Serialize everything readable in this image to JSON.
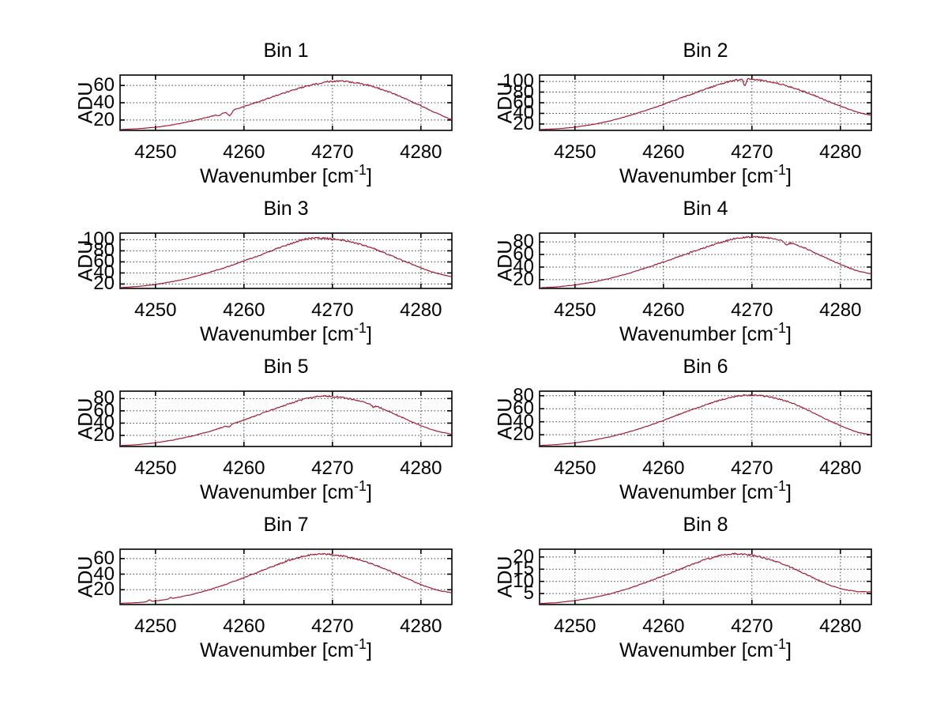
{
  "figure": {
    "background": "#ffffff",
    "line_color": "#A2142F",
    "grid_color": "#3c3c3c",
    "axis_color": "#000000",
    "text_color": "#000000"
  },
  "chart_data": [
    {
      "type": "line",
      "title": "Bin 1",
      "ylabel": "ADU",
      "xlabel_parts": [
        "Wavenumber [cm",
        "-1",
        "]"
      ],
      "xlim": [
        4246,
        4283.5
      ],
      "xticks": [
        4250,
        4260,
        4270,
        4280
      ],
      "ylim": [
        8,
        72
      ],
      "yticks": [
        20,
        40,
        60
      ],
      "grid": true,
      "noise": 0.9,
      "anchors": [
        [
          4246,
          9
        ],
        [
          4248,
          10
        ],
        [
          4250,
          11.5
        ],
        [
          4252,
          14.5
        ],
        [
          4254,
          18.5
        ],
        [
          4256,
          23.5
        ],
        [
          4258,
          29
        ],
        [
          4260,
          35.5
        ],
        [
          4262,
          42.5
        ],
        [
          4264,
          49.5
        ],
        [
          4266,
          56
        ],
        [
          4268,
          61.5
        ],
        [
          4269,
          63.5
        ],
        [
          4270,
          65
        ],
        [
          4271,
          65
        ],
        [
          4272,
          64
        ],
        [
          4273,
          62.5
        ],
        [
          4274,
          60.5
        ],
        [
          4275,
          57.5
        ],
        [
          4276,
          54
        ],
        [
          4277,
          50
        ],
        [
          4278,
          45.5
        ],
        [
          4279,
          41
        ],
        [
          4280,
          36.5
        ],
        [
          4281,
          31.5
        ],
        [
          4282,
          27
        ],
        [
          4283.5,
          20
        ]
      ],
      "events": [
        {
          "x": 4257.2,
          "dy": -2,
          "w": 0.35
        },
        {
          "x": 4258.4,
          "dy": -5.5,
          "w": 0.45
        }
      ]
    },
    {
      "type": "line",
      "title": "Bin 2",
      "ylabel": "ADU",
      "xlabel_parts": [
        "Wavenumber [cm",
        "-1",
        "]"
      ],
      "xlim": [
        4246,
        4283.5
      ],
      "xticks": [
        4250,
        4260,
        4270,
        4280
      ],
      "ylim": [
        8,
        112
      ],
      "yticks": [
        20,
        40,
        60,
        80,
        100
      ],
      "grid": true,
      "noise": 1.4,
      "anchors": [
        [
          4246,
          9.5
        ],
        [
          4248,
          11
        ],
        [
          4250,
          14
        ],
        [
          4252,
          19
        ],
        [
          4254,
          26
        ],
        [
          4256,
          35
        ],
        [
          4258,
          45.5
        ],
        [
          4260,
          57
        ],
        [
          4262,
          69
        ],
        [
          4264,
          81
        ],
        [
          4265,
          87
        ],
        [
          4266,
          93
        ],
        [
          4267,
          98
        ],
        [
          4268,
          102
        ],
        [
          4269,
          104.5
        ],
        [
          4270,
          104
        ],
        [
          4271,
          102
        ],
        [
          4272,
          99.5
        ],
        [
          4273,
          96
        ],
        [
          4274,
          91.5
        ],
        [
          4275,
          86.5
        ],
        [
          4276,
          80.5
        ],
        [
          4277,
          74
        ],
        [
          4278,
          67
        ],
        [
          4279,
          60
        ],
        [
          4280,
          53.5
        ],
        [
          4281,
          47.5
        ],
        [
          4282,
          42
        ],
        [
          4283.5,
          36
        ]
      ],
      "events": [
        {
          "x": 4269.2,
          "dy": -15,
          "w": 0.3
        }
      ]
    },
    {
      "type": "line",
      "title": "Bin 3",
      "ylabel": "ADU",
      "xlabel_parts": [
        "Wavenumber [cm",
        "-1",
        "]"
      ],
      "xlim": [
        4246,
        4283.5
      ],
      "xticks": [
        4250,
        4260,
        4270,
        4280
      ],
      "ylim": [
        12,
        112
      ],
      "yticks": [
        20,
        40,
        60,
        80,
        100
      ],
      "grid": true,
      "noise": 1.5,
      "anchors": [
        [
          4246,
          13.5
        ],
        [
          4248,
          15.5
        ],
        [
          4250,
          19
        ],
        [
          4252,
          24.5
        ],
        [
          4254,
          31.5
        ],
        [
          4256,
          40.5
        ],
        [
          4258,
          50.5
        ],
        [
          4260,
          61.5
        ],
        [
          4262,
          73.5
        ],
        [
          4264,
          85.5
        ],
        [
          4265,
          91
        ],
        [
          4266,
          97
        ],
        [
          4267,
          101.5
        ],
        [
          4268,
          103.5
        ],
        [
          4269,
          103
        ],
        [
          4270,
          101.5
        ],
        [
          4271,
          99.5
        ],
        [
          4272,
          96.5
        ],
        [
          4273,
          92.5
        ],
        [
          4274,
          87.5
        ],
        [
          4275,
          82
        ],
        [
          4276,
          75.5
        ],
        [
          4277,
          69
        ],
        [
          4278,
          62
        ],
        [
          4279,
          55.5
        ],
        [
          4280,
          49
        ],
        [
          4281,
          43.5
        ],
        [
          4282,
          38.5
        ],
        [
          4283.5,
          33
        ]
      ],
      "events": []
    },
    {
      "type": "line",
      "title": "Bin 4",
      "ylabel": "ADU",
      "xlabel_parts": [
        "Wavenumber [cm",
        "-1",
        "]"
      ],
      "xlim": [
        4246,
        4283.5
      ],
      "xticks": [
        4250,
        4260,
        4270,
        4280
      ],
      "ylim": [
        6,
        94
      ],
      "yticks": [
        20,
        40,
        60,
        80
      ],
      "grid": true,
      "noise": 1.2,
      "anchors": [
        [
          4246,
          7
        ],
        [
          4248,
          8.5
        ],
        [
          4250,
          11.5
        ],
        [
          4252,
          16
        ],
        [
          4254,
          22
        ],
        [
          4256,
          29.5
        ],
        [
          4258,
          38.5
        ],
        [
          4260,
          48
        ],
        [
          4262,
          58
        ],
        [
          4264,
          68
        ],
        [
          4265,
          72.5
        ],
        [
          4266,
          77
        ],
        [
          4267,
          81.5
        ],
        [
          4268,
          85
        ],
        [
          4269,
          87
        ],
        [
          4270,
          88
        ],
        [
          4271,
          87.5
        ],
        [
          4272,
          86
        ],
        [
          4273,
          83.5
        ],
        [
          4274,
          80
        ],
        [
          4275,
          75.5
        ],
        [
          4276,
          70
        ],
        [
          4277,
          63.5
        ],
        [
          4278,
          57
        ],
        [
          4279,
          50.5
        ],
        [
          4280,
          44.5
        ],
        [
          4281,
          38.5
        ],
        [
          4282,
          33.5
        ],
        [
          4283.5,
          29
        ]
      ],
      "events": [
        {
          "x": 4273.9,
          "dy": -4.5,
          "w": 0.5
        }
      ]
    },
    {
      "type": "line",
      "title": "Bin 5",
      "ylabel": "ADU",
      "xlabel_parts": [
        "Wavenumber [cm",
        "-1",
        "]"
      ],
      "xlim": [
        4246,
        4283.5
      ],
      "xticks": [
        4250,
        4260,
        4270,
        4280
      ],
      "ylim": [
        2,
        92
      ],
      "yticks": [
        20,
        40,
        60,
        80
      ],
      "grid": true,
      "noise": 1.3,
      "anchors": [
        [
          4246,
          3.5
        ],
        [
          4248,
          5
        ],
        [
          4250,
          8
        ],
        [
          4252,
          12.5
        ],
        [
          4254,
          18.5
        ],
        [
          4256,
          26
        ],
        [
          4258,
          35
        ],
        [
          4260,
          45
        ],
        [
          4262,
          55.5
        ],
        [
          4264,
          66
        ],
        [
          4265,
          71
        ],
        [
          4266,
          75.5
        ],
        [
          4267,
          79.5
        ],
        [
          4268,
          82.5
        ],
        [
          4269,
          84
        ],
        [
          4270,
          83.5
        ],
        [
          4271,
          82
        ],
        [
          4272,
          79.5
        ],
        [
          4273,
          76.5
        ],
        [
          4274,
          72.5
        ],
        [
          4275,
          67.5
        ],
        [
          4276,
          61.5
        ],
        [
          4277,
          55
        ],
        [
          4278,
          48.5
        ],
        [
          4279,
          42
        ],
        [
          4280,
          36
        ],
        [
          4281,
          30.5
        ],
        [
          4282,
          26
        ],
        [
          4283.5,
          22
        ]
      ],
      "events": [
        {
          "x": 4258.3,
          "dy": -3,
          "w": 0.4
        },
        {
          "x": 4274.6,
          "dy": -3.5,
          "w": 0.4
        }
      ]
    },
    {
      "type": "line",
      "title": "Bin 6",
      "ylabel": "ADU",
      "xlabel_parts": [
        "Wavenumber [cm",
        "-1",
        "]"
      ],
      "xlim": [
        4246,
        4283.5
      ],
      "xticks": [
        4250,
        4260,
        4270,
        4280
      ],
      "ylim": [
        2,
        87
      ],
      "yticks": [
        20,
        40,
        60,
        80
      ],
      "grid": true,
      "noise": 1.0,
      "anchors": [
        [
          4246,
          3.5
        ],
        [
          4248,
          5
        ],
        [
          4250,
          7.5
        ],
        [
          4252,
          11.5
        ],
        [
          4254,
          17
        ],
        [
          4256,
          24
        ],
        [
          4258,
          32.5
        ],
        [
          4260,
          42
        ],
        [
          4262,
          52.5
        ],
        [
          4264,
          62.5
        ],
        [
          4265,
          67
        ],
        [
          4266,
          71.5
        ],
        [
          4267,
          75.5
        ],
        [
          4268,
          78.5
        ],
        [
          4269,
          80.5
        ],
        [
          4270,
          81
        ],
        [
          4271,
          80
        ],
        [
          4272,
          78
        ],
        [
          4273,
          75
        ],
        [
          4274,
          71
        ],
        [
          4275,
          66
        ],
        [
          4276,
          60
        ],
        [
          4277,
          53.5
        ],
        [
          4278,
          46.5
        ],
        [
          4279,
          40
        ],
        [
          4280,
          34
        ],
        [
          4281,
          28.5
        ],
        [
          4282,
          23.5
        ],
        [
          4283.5,
          20
        ]
      ],
      "events": []
    },
    {
      "type": "line",
      "title": "Bin 7",
      "ylabel": "ADU",
      "xlabel_parts": [
        "Wavenumber [cm",
        "-1",
        "]"
      ],
      "xlim": [
        4246,
        4283.5
      ],
      "xticks": [
        4250,
        4260,
        4270,
        4280
      ],
      "ylim": [
        1,
        72
      ],
      "yticks": [
        20,
        40,
        60
      ],
      "grid": true,
      "noise": 1.0,
      "anchors": [
        [
          4246,
          2.5
        ],
        [
          4248,
          3.5
        ],
        [
          4250,
          5.5
        ],
        [
          4252,
          9
        ],
        [
          4254,
          13.5
        ],
        [
          4256,
          19.5
        ],
        [
          4258,
          27
        ],
        [
          4260,
          35.5
        ],
        [
          4262,
          44.5
        ],
        [
          4263,
          49
        ],
        [
          4264,
          53
        ],
        [
          4265,
          57.5
        ],
        [
          4266,
          61
        ],
        [
          4267,
          63.5
        ],
        [
          4268,
          65.5
        ],
        [
          4269,
          66
        ],
        [
          4270,
          65
        ],
        [
          4271,
          63.5
        ],
        [
          4272,
          61.5
        ],
        [
          4273,
          58.5
        ],
        [
          4274,
          55
        ],
        [
          4275,
          51
        ],
        [
          4276,
          46.5
        ],
        [
          4277,
          41.5
        ],
        [
          4278,
          36.5
        ],
        [
          4279,
          31.5
        ],
        [
          4280,
          26.5
        ],
        [
          4281,
          22.5
        ],
        [
          4282,
          19
        ],
        [
          4283.5,
          16
        ]
      ],
      "events": [
        {
          "x": 4249.3,
          "dy": 2.5,
          "w": 0.3
        },
        {
          "x": 4251.7,
          "dy": 2,
          "w": 0.25
        }
      ]
    },
    {
      "type": "line",
      "title": "Bin 8",
      "ylabel": "ADU",
      "xlabel_parts": [
        "Wavenumber [cm",
        "-1",
        "]"
      ],
      "xlim": [
        4246,
        4283.5
      ],
      "xticks": [
        4250,
        4260,
        4270,
        4280
      ],
      "ylim": [
        0.5,
        23.2
      ],
      "yticks": [
        5,
        10,
        15,
        20
      ],
      "grid": true,
      "noise": 0.35,
      "anchors": [
        [
          4246,
          0.9
        ],
        [
          4248,
          1.3
        ],
        [
          4250,
          2.1
        ],
        [
          4252,
          3.3
        ],
        [
          4254,
          4.9
        ],
        [
          4256,
          7
        ],
        [
          4258,
          9.5
        ],
        [
          4260,
          12.3
        ],
        [
          4262,
          15.2
        ],
        [
          4263,
          16.6
        ],
        [
          4264,
          18
        ],
        [
          4265,
          19.2
        ],
        [
          4266,
          20.2
        ],
        [
          4267,
          21
        ],
        [
          4268,
          21.3
        ],
        [
          4269,
          21.2
        ],
        [
          4270,
          20.7
        ],
        [
          4271,
          20
        ],
        [
          4272,
          19
        ],
        [
          4273,
          17.8
        ],
        [
          4274,
          16.4
        ],
        [
          4275,
          14.8
        ],
        [
          4276,
          13.1
        ],
        [
          4277,
          11.4
        ],
        [
          4278,
          9.7
        ],
        [
          4279,
          8.2
        ],
        [
          4280,
          7
        ],
        [
          4281,
          6.3
        ],
        [
          4282,
          5.8
        ],
        [
          4283.5,
          5.6
        ]
      ],
      "events": []
    }
  ]
}
